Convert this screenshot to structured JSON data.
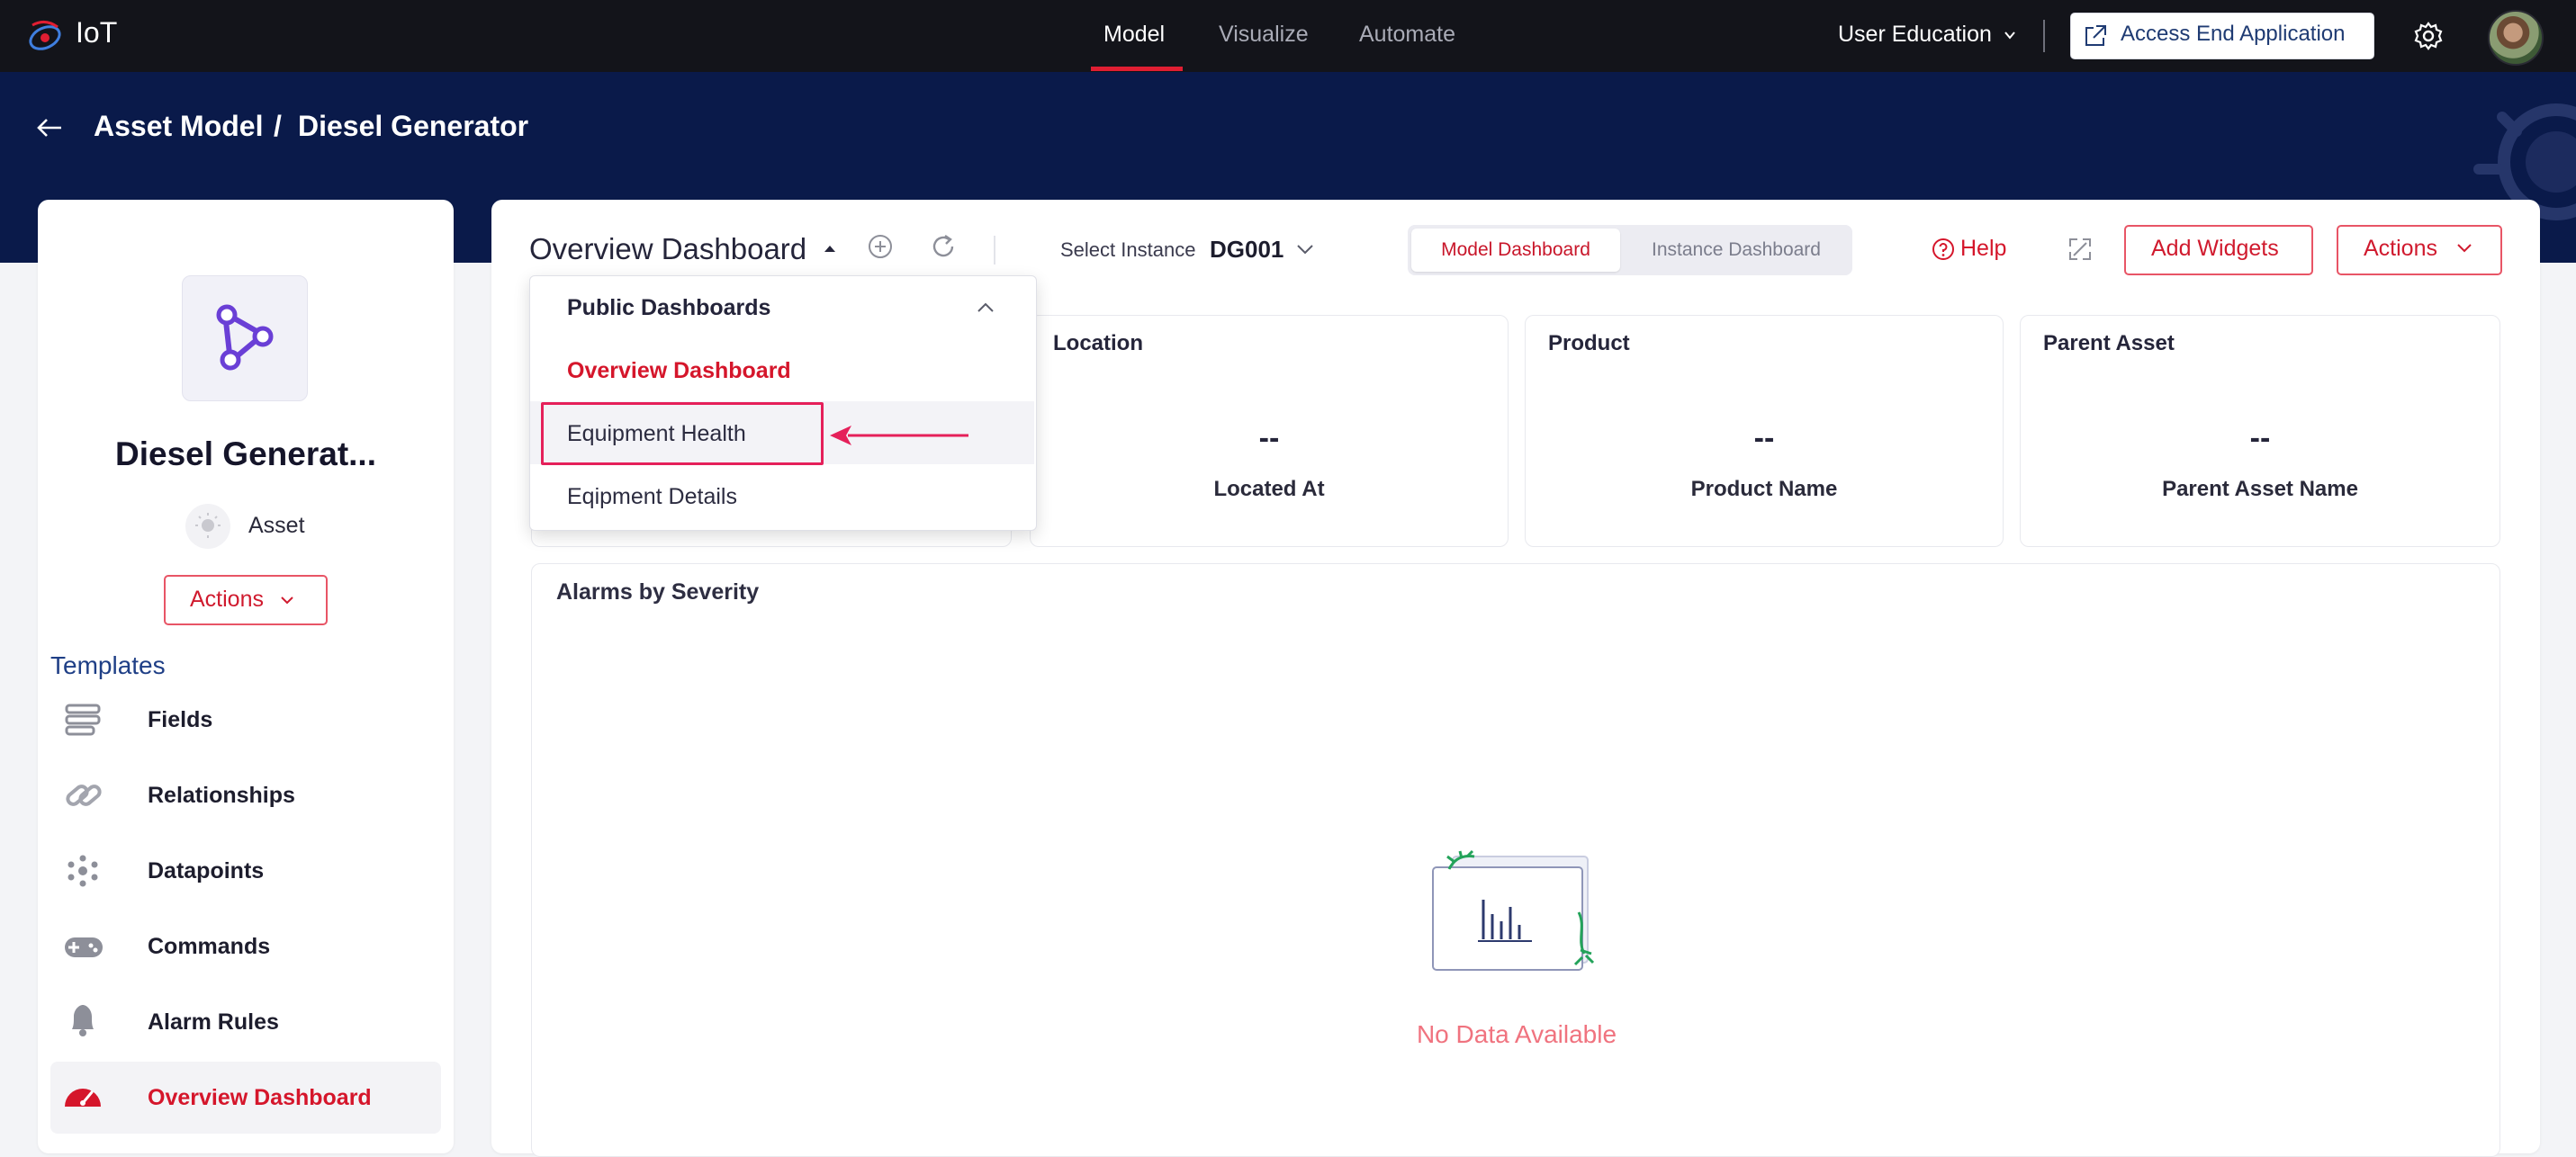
{
  "topbar": {
    "app_name": "IoT",
    "nav": [
      "Model",
      "Visualize",
      "Automate"
    ],
    "org": "User Education",
    "access_label": "Access End Application"
  },
  "breadcrumb": {
    "parent": "Asset Model",
    "separator": "/",
    "current": "Diesel Generator"
  },
  "left_panel": {
    "asset_name": "Diesel Generat...",
    "asset_type": "Asset",
    "actions_label": "Actions",
    "templates_title": "Templates",
    "items": [
      {
        "label": "Fields",
        "icon": "fields-icon"
      },
      {
        "label": "Relationships",
        "icon": "relationships-icon"
      },
      {
        "label": "Datapoints",
        "icon": "datapoints-icon"
      },
      {
        "label": "Commands",
        "icon": "commands-icon"
      },
      {
        "label": "Alarm Rules",
        "icon": "bell-icon"
      },
      {
        "label": "Overview Dashboard",
        "icon": "dashboard-icon"
      }
    ]
  },
  "toolbar": {
    "dashboard_title": "Overview Dashboard",
    "select_instance_label": "Select Instance",
    "select_instance_value": "DG001",
    "tab_model": "Model Dashboard",
    "tab_instance": "Instance Dashboard",
    "help": "Help",
    "add_widgets": "Add Widgets",
    "actions": "Actions"
  },
  "dropdown": {
    "group": "Public Dashboards",
    "items": [
      "Overview Dashboard",
      "Equipment Health",
      "Eqipment Details"
    ]
  },
  "cards": [
    {
      "title": "Location",
      "value": "--",
      "sub": "Located At"
    },
    {
      "title": "Product",
      "value": "--",
      "sub": "Product Name"
    },
    {
      "title": "Parent Asset",
      "value": "--",
      "sub": "Parent Asset Name"
    }
  ],
  "alarms": {
    "title": "Alarms by Severity",
    "empty": "No Data Available"
  },
  "colors": {
    "accent_red": "#d5162b",
    "header_navy": "#0a1a4a",
    "topbar": "#13141a",
    "annotation_pink": "#e5205a"
  }
}
